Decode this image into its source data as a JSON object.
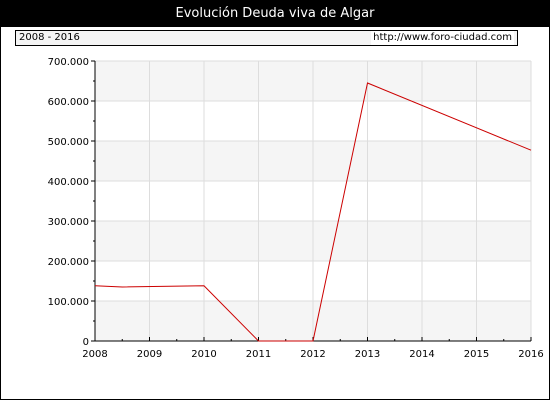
{
  "title": "Evolución Deuda viva de Algar",
  "period": "2008 - 2016",
  "source_url": "http://www.foro-ciudad.com",
  "colors": {
    "line": "#cc0000",
    "band": "#f5f5f5",
    "grid": "#dddddd",
    "header_bg": "#000000"
  },
  "chart_data": {
    "type": "line",
    "title": "Evolución Deuda viva de Algar",
    "xlabel": "",
    "ylabel": "",
    "x_ticks": [
      "2008",
      "2009",
      "2010",
      "2011",
      "2012",
      "2013",
      "2014",
      "2015",
      "2016"
    ],
    "y_ticks": [
      "0",
      "100.000",
      "200.000",
      "300.000",
      "400.000",
      "500.000",
      "600.000",
      "700.000"
    ],
    "xlim": [
      2008,
      2016
    ],
    "ylim": [
      0,
      700000
    ],
    "grid": true,
    "series": [
      {
        "x": [
          2008,
          2008.5,
          2010,
          2011,
          2012,
          2013,
          2016
        ],
        "y": [
          138000,
          135000,
          138000,
          0,
          0,
          645000,
          477000
        ]
      }
    ]
  }
}
